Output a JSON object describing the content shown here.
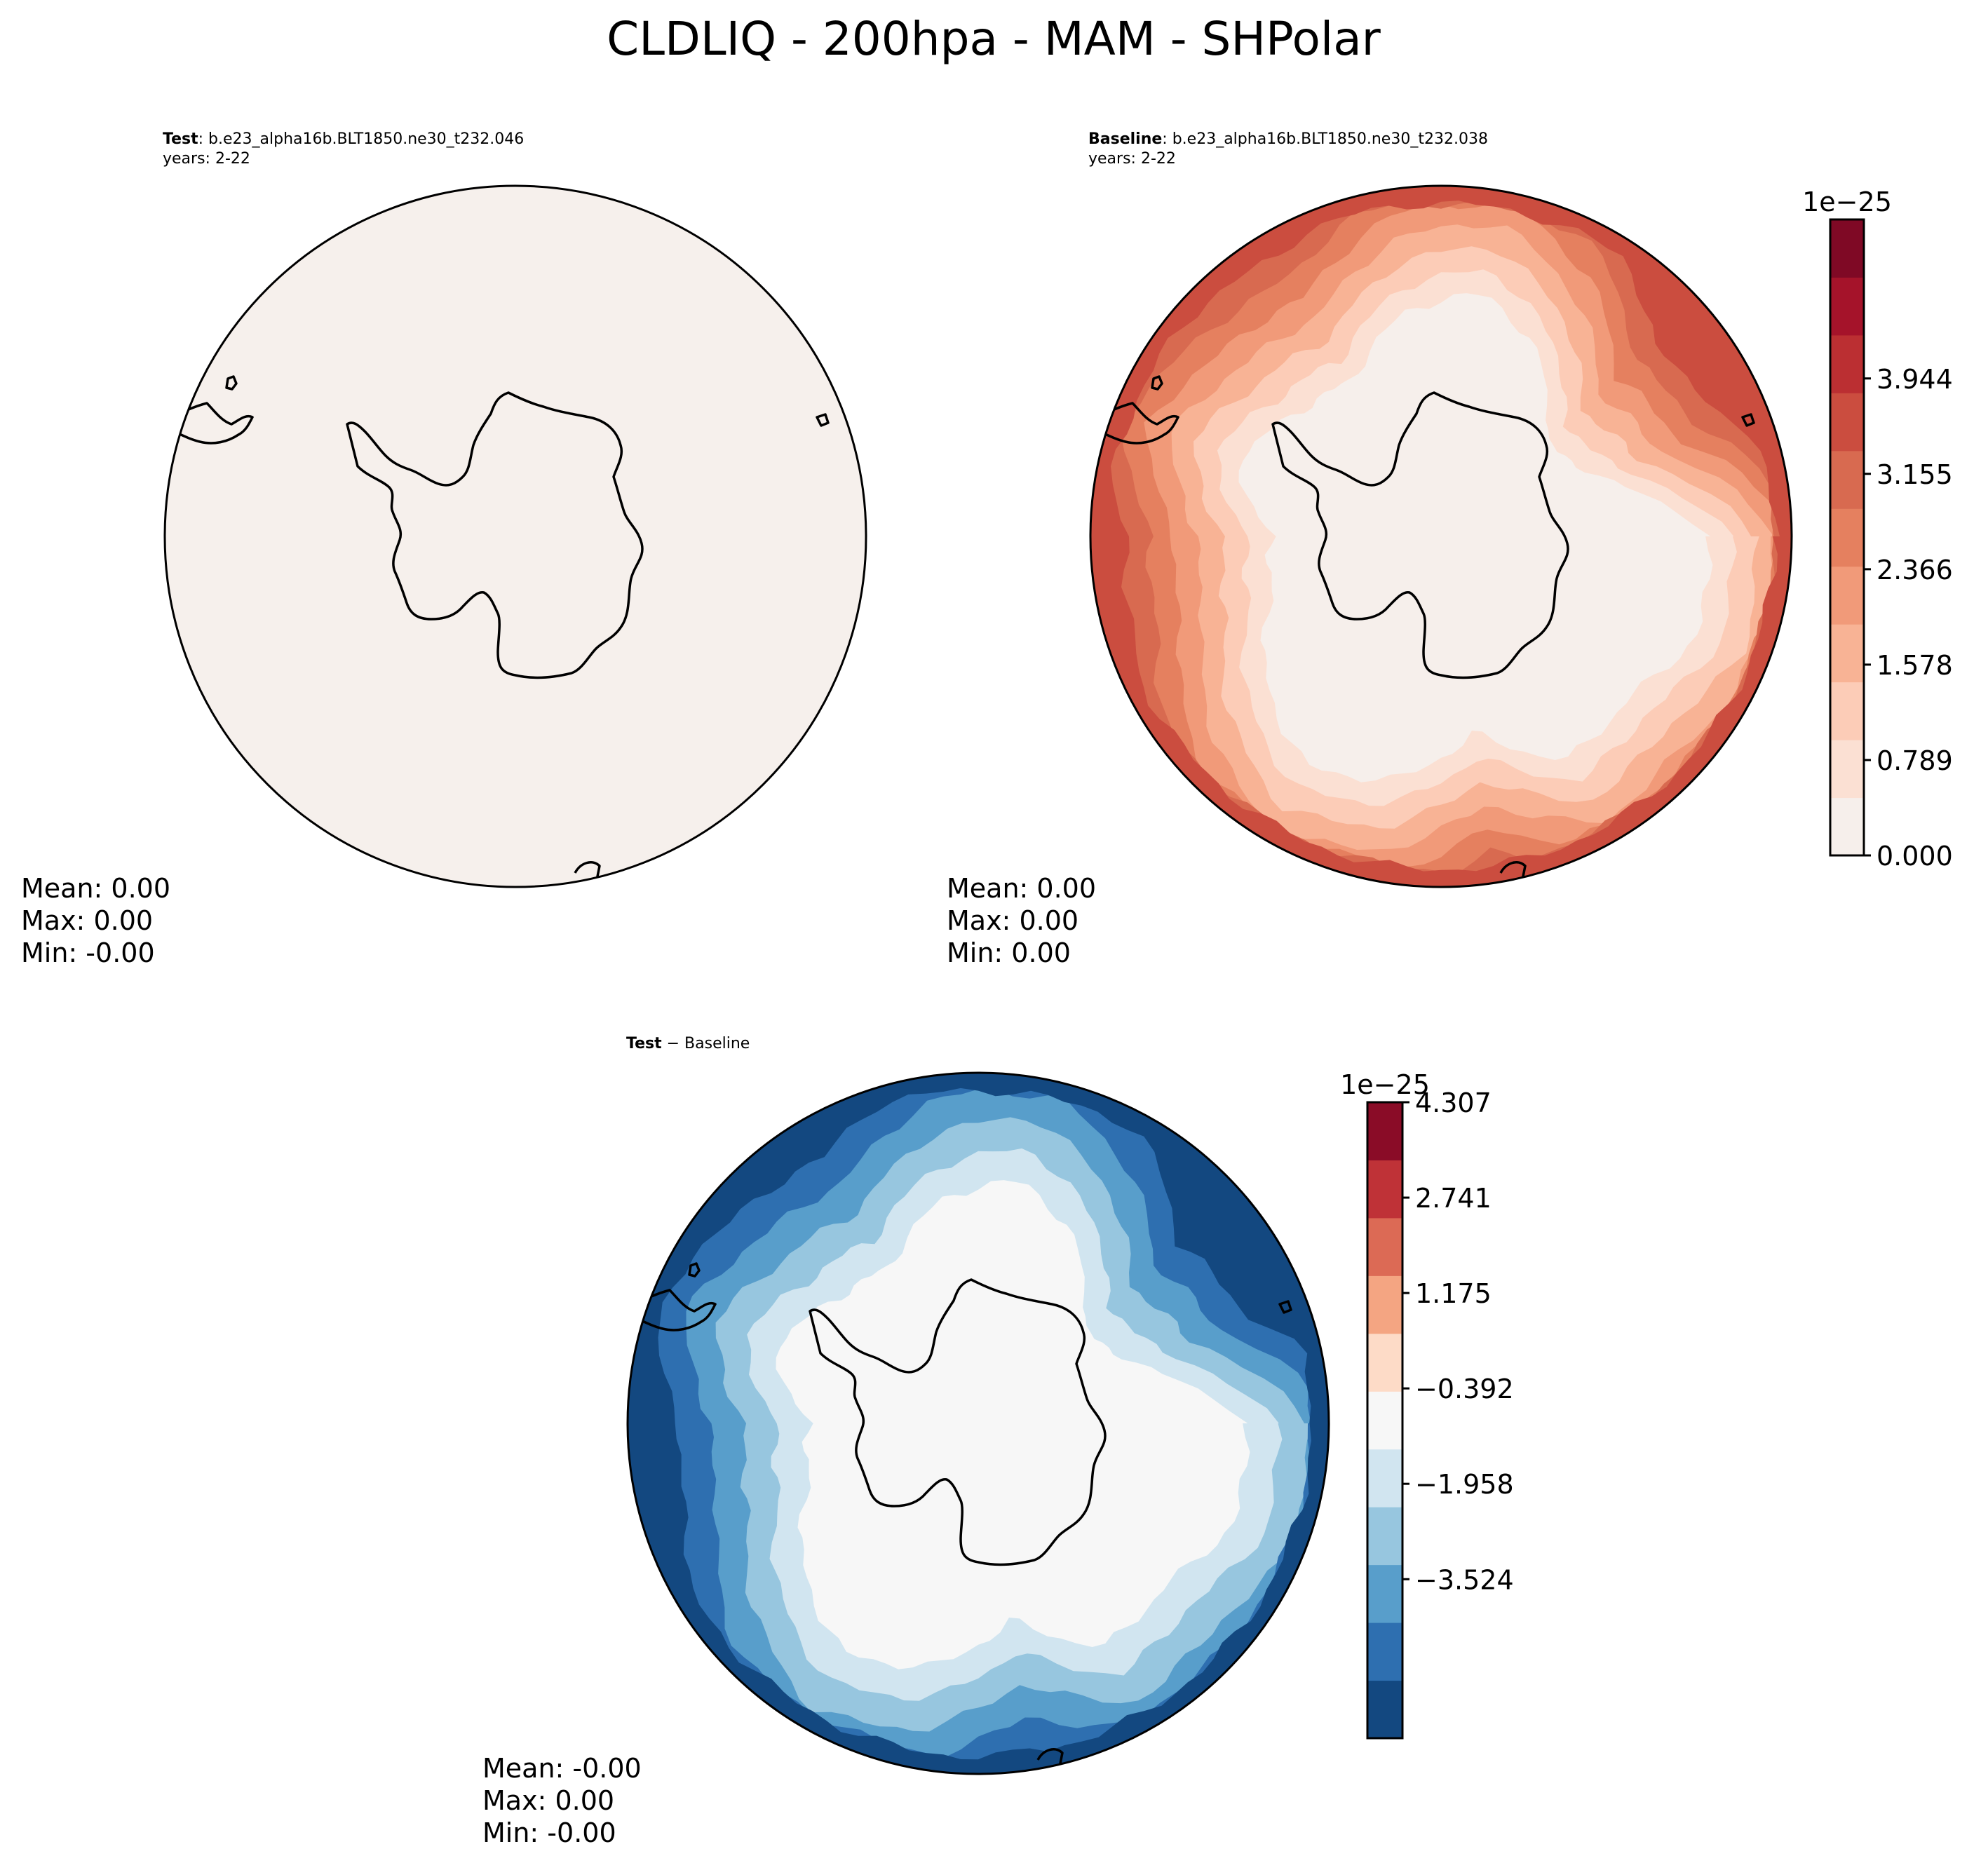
{
  "figure": {
    "title": "CLDLIQ - 200hpa - MAM - SHPolar"
  },
  "chart_data": [
    {
      "type": "heatmap",
      "projection": "south-polar-stereographic",
      "panel": "test",
      "label_bold": "Test",
      "label_rest": ": b.e23_alpha16b.BLT1850.ne30_t232.046",
      "years": "years: 2-22",
      "field_level": 0,
      "stats": [
        "Mean:  0.00",
        "Max:  0.00",
        "Min: -0.00"
      ]
    },
    {
      "type": "heatmap",
      "projection": "south-polar-stereographic",
      "panel": "baseline",
      "label_bold": "Baseline",
      "label_rest": ": b.e23_alpha16b.BLT1850.ne30_t232.038",
      "years": "years: 2-22",
      "stats": [
        "Mean:  0.00",
        "Max:  0.00",
        "Min:  0.00"
      ],
      "colorbar": {
        "exponent": "1e−25",
        "ticks": [
          "0.000",
          "0.789",
          "1.578",
          "2.366",
          "3.155",
          "3.944"
        ],
        "levels": 11,
        "colors": [
          "#f6efeb",
          "#fbe0d3",
          "#fcccb7",
          "#f8b395",
          "#f19a79",
          "#e5805f",
          "#d86a50",
          "#cb4d3f",
          "#bb2f32",
          "#a5132a",
          "#7f0925"
        ]
      }
    },
    {
      "type": "heatmap",
      "projection": "south-polar-stereographic",
      "panel": "difference",
      "label_bold": "Test",
      "label_rest": " − Baseline",
      "stats": [
        "Mean: -0.00",
        "Max:  0.00",
        "Min: -0.00"
      ],
      "colorbar": {
        "exponent": "1e−25",
        "ticks": [
          "4.307",
          "2.741",
          "1.175",
          "−0.392",
          "−1.958",
          "−3.524"
        ],
        "levels": 11,
        "colors": [
          "#134880",
          "#2e6fb0",
          "#589ecb",
          "#97c6df",
          "#d1e5f0",
          "#f7f7f7",
          "#fddbc7",
          "#f4a582",
          "#dc6a55",
          "#bf3237",
          "#8a0c27"
        ]
      }
    }
  ]
}
